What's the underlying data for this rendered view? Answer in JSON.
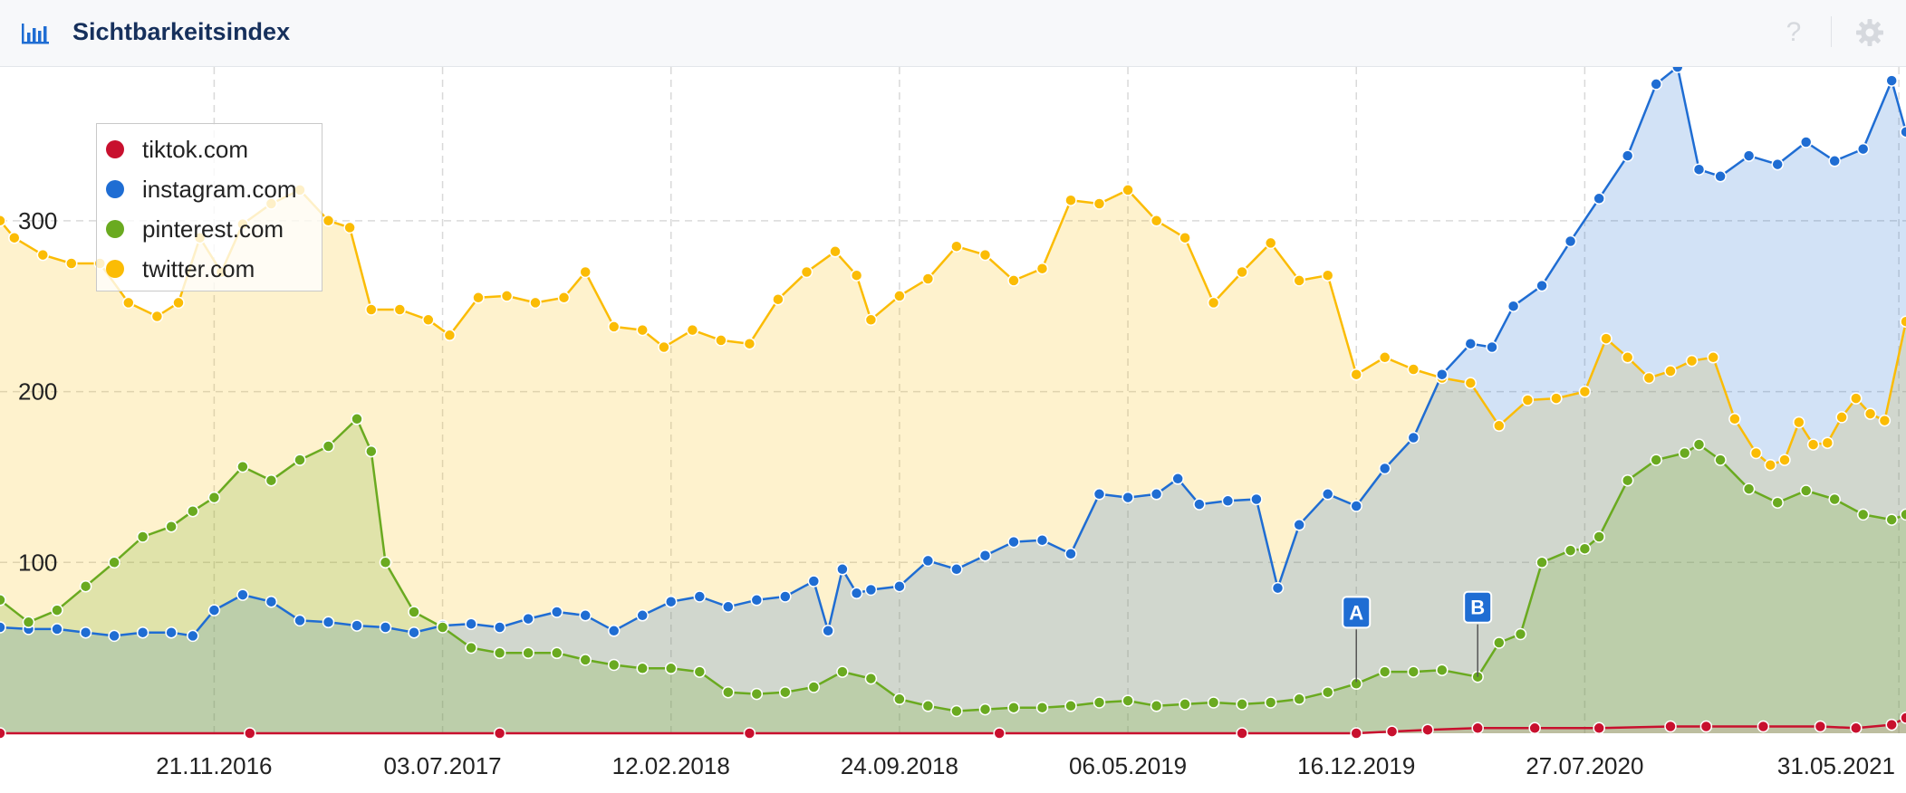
{
  "header": {
    "title": "Sichtbarkeitsindex",
    "help_symbol": "?"
  },
  "chart_data": {
    "type": "area",
    "title": "Sichtbarkeitsindex",
    "xlabel": "",
    "ylabel": "",
    "x_tick_labels": [
      "21.11.2016",
      "03.07.2017",
      "12.02.2018",
      "24.09.2018",
      "06.05.2019",
      "16.12.2019",
      "27.07.2020",
      "31.05.2021"
    ],
    "x_tick_dates": [
      "2016-11-21",
      "2017-07-03",
      "2018-02-12",
      "2018-09-24",
      "2019-05-06",
      "2019-12-16",
      "2020-07-27",
      "2021-05-31"
    ],
    "x_range": [
      "2016-04-25",
      "2021-06-07"
    ],
    "y_tick_labels": [
      "100",
      "200",
      "300"
    ],
    "y_ticks": [
      100,
      200,
      300
    ],
    "ylim": [
      0,
      390
    ],
    "grid": true,
    "legend_position": "top-left",
    "annotations": [
      {
        "label": "A",
        "date": "2019-12-16",
        "value": 30
      },
      {
        "label": "B",
        "date": "2020-04-13",
        "value": 33
      }
    ],
    "series": [
      {
        "name": "tiktok.com",
        "color": "#c8102e",
        "points": [
          [
            "2016-04-25",
            0
          ],
          [
            "2016-12-26",
            0
          ],
          [
            "2017-08-28",
            0
          ],
          [
            "2018-04-30",
            0
          ],
          [
            "2018-12-31",
            0
          ],
          [
            "2019-08-26",
            0
          ],
          [
            "2019-12-16",
            0
          ],
          [
            "2020-01-20",
            1
          ],
          [
            "2020-02-24",
            2
          ],
          [
            "2020-04-13",
            3
          ],
          [
            "2020-06-08",
            3
          ],
          [
            "2020-08-10",
            3
          ],
          [
            "2020-10-19",
            4
          ],
          [
            "2020-11-23",
            4
          ],
          [
            "2021-01-18",
            4
          ],
          [
            "2021-03-15",
            4
          ],
          [
            "2021-04-19",
            3
          ],
          [
            "2021-05-24",
            5
          ],
          [
            "2021-06-07",
            9
          ]
        ]
      },
      {
        "name": "instagram.com",
        "color": "#1f6dd3",
        "points": [
          [
            "2016-04-25",
            62
          ],
          [
            "2016-05-23",
            61
          ],
          [
            "2016-06-20",
            61
          ],
          [
            "2016-07-18",
            59
          ],
          [
            "2016-08-15",
            57
          ],
          [
            "2016-09-12",
            59
          ],
          [
            "2016-10-10",
            59
          ],
          [
            "2016-10-31",
            57
          ],
          [
            "2016-11-21",
            72
          ],
          [
            "2016-12-19",
            81
          ],
          [
            "2017-01-16",
            77
          ],
          [
            "2017-02-13",
            66
          ],
          [
            "2017-03-13",
            65
          ],
          [
            "2017-04-10",
            63
          ],
          [
            "2017-05-08",
            62
          ],
          [
            "2017-06-05",
            59
          ],
          [
            "2017-07-03",
            63
          ],
          [
            "2017-07-31",
            64
          ],
          [
            "2017-08-28",
            62
          ],
          [
            "2017-09-25",
            67
          ],
          [
            "2017-10-23",
            71
          ],
          [
            "2017-11-20",
            69
          ],
          [
            "2017-12-18",
            60
          ],
          [
            "2018-01-15",
            69
          ],
          [
            "2018-02-12",
            77
          ],
          [
            "2018-03-12",
            80
          ],
          [
            "2018-04-09",
            74
          ],
          [
            "2018-05-07",
            78
          ],
          [
            "2018-06-04",
            80
          ],
          [
            "2018-07-02",
            89
          ],
          [
            "2018-07-16",
            60
          ],
          [
            "2018-07-30",
            96
          ],
          [
            "2018-08-13",
            82
          ],
          [
            "2018-08-27",
            84
          ],
          [
            "2018-09-24",
            86
          ],
          [
            "2018-10-22",
            101
          ],
          [
            "2018-11-19",
            96
          ],
          [
            "2018-12-17",
            104
          ],
          [
            "2019-01-14",
            112
          ],
          [
            "2019-02-11",
            113
          ],
          [
            "2019-03-11",
            105
          ],
          [
            "2019-04-08",
            140
          ],
          [
            "2019-05-06",
            138
          ],
          [
            "2019-06-03",
            140
          ],
          [
            "2019-06-24",
            149
          ],
          [
            "2019-07-15",
            134
          ],
          [
            "2019-08-12",
            136
          ],
          [
            "2019-09-09",
            137
          ],
          [
            "2019-09-30",
            85
          ],
          [
            "2019-10-21",
            122
          ],
          [
            "2019-11-18",
            140
          ],
          [
            "2019-12-16",
            133
          ],
          [
            "2020-01-13",
            155
          ],
          [
            "2020-02-10",
            173
          ],
          [
            "2020-03-09",
            210
          ],
          [
            "2020-04-06",
            228
          ],
          [
            "2020-04-27",
            226
          ],
          [
            "2020-05-18",
            250
          ],
          [
            "2020-06-15",
            262
          ],
          [
            "2020-07-13",
            288
          ],
          [
            "2020-08-10",
            313
          ],
          [
            "2020-09-07",
            338
          ],
          [
            "2020-10-05",
            380
          ],
          [
            "2020-10-26",
            390
          ],
          [
            "2020-11-16",
            330
          ],
          [
            "2020-12-07",
            326
          ],
          [
            "2021-01-04",
            338
          ],
          [
            "2021-02-01",
            333
          ],
          [
            "2021-03-01",
            346
          ],
          [
            "2021-03-29",
            335
          ],
          [
            "2021-04-26",
            342
          ],
          [
            "2021-05-24",
            382
          ],
          [
            "2021-06-07",
            352
          ]
        ]
      },
      {
        "name": "pinterest.com",
        "color": "#6aaa20",
        "points": [
          [
            "2016-04-25",
            78
          ],
          [
            "2016-05-23",
            65
          ],
          [
            "2016-06-20",
            72
          ],
          [
            "2016-07-18",
            86
          ],
          [
            "2016-08-15",
            100
          ],
          [
            "2016-09-12",
            115
          ],
          [
            "2016-10-10",
            121
          ],
          [
            "2016-10-31",
            130
          ],
          [
            "2016-11-21",
            138
          ],
          [
            "2016-12-19",
            156
          ],
          [
            "2017-01-16",
            148
          ],
          [
            "2017-02-13",
            160
          ],
          [
            "2017-03-13",
            168
          ],
          [
            "2017-04-10",
            184
          ],
          [
            "2017-04-24",
            165
          ],
          [
            "2017-05-08",
            100
          ],
          [
            "2017-06-05",
            71
          ],
          [
            "2017-07-03",
            62
          ],
          [
            "2017-07-31",
            50
          ],
          [
            "2017-08-28",
            47
          ],
          [
            "2017-09-25",
            47
          ],
          [
            "2017-10-23",
            47
          ],
          [
            "2017-11-20",
            43
          ],
          [
            "2017-12-18",
            40
          ],
          [
            "2018-01-15",
            38
          ],
          [
            "2018-02-12",
            38
          ],
          [
            "2018-03-12",
            36
          ],
          [
            "2018-04-09",
            24
          ],
          [
            "2018-05-07",
            23
          ],
          [
            "2018-06-04",
            24
          ],
          [
            "2018-07-02",
            27
          ],
          [
            "2018-07-30",
            36
          ],
          [
            "2018-08-27",
            32
          ],
          [
            "2018-09-24",
            20
          ],
          [
            "2018-10-22",
            16
          ],
          [
            "2018-11-19",
            13
          ],
          [
            "2018-12-17",
            14
          ],
          [
            "2019-01-14",
            15
          ],
          [
            "2019-02-11",
            15
          ],
          [
            "2019-03-11",
            16
          ],
          [
            "2019-04-08",
            18
          ],
          [
            "2019-05-06",
            19
          ],
          [
            "2019-06-03",
            16
          ],
          [
            "2019-07-01",
            17
          ],
          [
            "2019-07-29",
            18
          ],
          [
            "2019-08-26",
            17
          ],
          [
            "2019-09-23",
            18
          ],
          [
            "2019-10-21",
            20
          ],
          [
            "2019-11-18",
            24
          ],
          [
            "2019-12-16",
            29
          ],
          [
            "2020-01-13",
            36
          ],
          [
            "2020-02-10",
            36
          ],
          [
            "2020-03-09",
            37
          ],
          [
            "2020-04-13",
            33
          ],
          [
            "2020-05-04",
            53
          ],
          [
            "2020-05-25",
            58
          ],
          [
            "2020-06-15",
            100
          ],
          [
            "2020-07-13",
            107
          ],
          [
            "2020-07-27",
            108
          ],
          [
            "2020-08-10",
            115
          ],
          [
            "2020-09-07",
            148
          ],
          [
            "2020-10-05",
            160
          ],
          [
            "2020-11-02",
            164
          ],
          [
            "2020-11-16",
            169
          ],
          [
            "2020-12-07",
            160
          ],
          [
            "2021-01-04",
            143
          ],
          [
            "2021-02-01",
            135
          ],
          [
            "2021-03-01",
            142
          ],
          [
            "2021-03-29",
            137
          ],
          [
            "2021-04-26",
            128
          ],
          [
            "2021-05-24",
            125
          ],
          [
            "2021-06-07",
            128
          ]
        ]
      },
      {
        "name": "twitter.com",
        "color": "#fbbc05",
        "points": [
          [
            "2016-04-25",
            300
          ],
          [
            "2016-05-09",
            290
          ],
          [
            "2016-06-06",
            280
          ],
          [
            "2016-07-04",
            275
          ],
          [
            "2016-08-01",
            275
          ],
          [
            "2016-08-29",
            252
          ],
          [
            "2016-09-26",
            244
          ],
          [
            "2016-10-17",
            252
          ],
          [
            "2016-11-07",
            290
          ],
          [
            "2016-11-28",
            270
          ],
          [
            "2016-12-19",
            298
          ],
          [
            "2017-01-16",
            310
          ],
          [
            "2017-02-13",
            318
          ],
          [
            "2017-03-13",
            300
          ],
          [
            "2017-04-03",
            296
          ],
          [
            "2017-04-24",
            248
          ],
          [
            "2017-05-22",
            248
          ],
          [
            "2017-06-19",
            242
          ],
          [
            "2017-07-10",
            233
          ],
          [
            "2017-08-07",
            255
          ],
          [
            "2017-09-04",
            256
          ],
          [
            "2017-10-02",
            252
          ],
          [
            "2017-10-30",
            255
          ],
          [
            "2017-11-20",
            270
          ],
          [
            "2017-12-18",
            238
          ],
          [
            "2018-01-15",
            236
          ],
          [
            "2018-02-05",
            226
          ],
          [
            "2018-03-05",
            236
          ],
          [
            "2018-04-02",
            230
          ],
          [
            "2018-04-30",
            228
          ],
          [
            "2018-05-28",
            254
          ],
          [
            "2018-06-25",
            270
          ],
          [
            "2018-07-23",
            282
          ],
          [
            "2018-08-13",
            268
          ],
          [
            "2018-08-27",
            242
          ],
          [
            "2018-09-24",
            256
          ],
          [
            "2018-10-22",
            266
          ],
          [
            "2018-11-19",
            285
          ],
          [
            "2018-12-17",
            280
          ],
          [
            "2019-01-14",
            265
          ],
          [
            "2019-02-11",
            272
          ],
          [
            "2019-03-11",
            312
          ],
          [
            "2019-04-08",
            310
          ],
          [
            "2019-05-06",
            318
          ],
          [
            "2019-06-03",
            300
          ],
          [
            "2019-07-01",
            290
          ],
          [
            "2019-07-29",
            252
          ],
          [
            "2019-08-26",
            270
          ],
          [
            "2019-09-23",
            287
          ],
          [
            "2019-10-21",
            265
          ],
          [
            "2019-11-18",
            268
          ],
          [
            "2019-12-16",
            210
          ],
          [
            "2020-01-13",
            220
          ],
          [
            "2020-02-10",
            213
          ],
          [
            "2020-03-09",
            208
          ],
          [
            "2020-04-06",
            205
          ],
          [
            "2020-05-04",
            180
          ],
          [
            "2020-06-01",
            195
          ],
          [
            "2020-06-29",
            196
          ],
          [
            "2020-07-27",
            200
          ],
          [
            "2020-08-17",
            231
          ],
          [
            "2020-09-07",
            220
          ],
          [
            "2020-09-28",
            208
          ],
          [
            "2020-10-19",
            212
          ],
          [
            "2020-11-09",
            218
          ],
          [
            "2020-11-30",
            220
          ],
          [
            "2020-12-21",
            184
          ],
          [
            "2021-01-11",
            164
          ],
          [
            "2021-01-25",
            157
          ],
          [
            "2021-02-08",
            160
          ],
          [
            "2021-02-22",
            182
          ],
          [
            "2021-03-08",
            169
          ],
          [
            "2021-03-22",
            170
          ],
          [
            "2021-04-05",
            185
          ],
          [
            "2021-04-19",
            196
          ],
          [
            "2021-05-03",
            187
          ],
          [
            "2021-05-17",
            183
          ],
          [
            "2021-06-07",
            241
          ]
        ]
      }
    ]
  }
}
